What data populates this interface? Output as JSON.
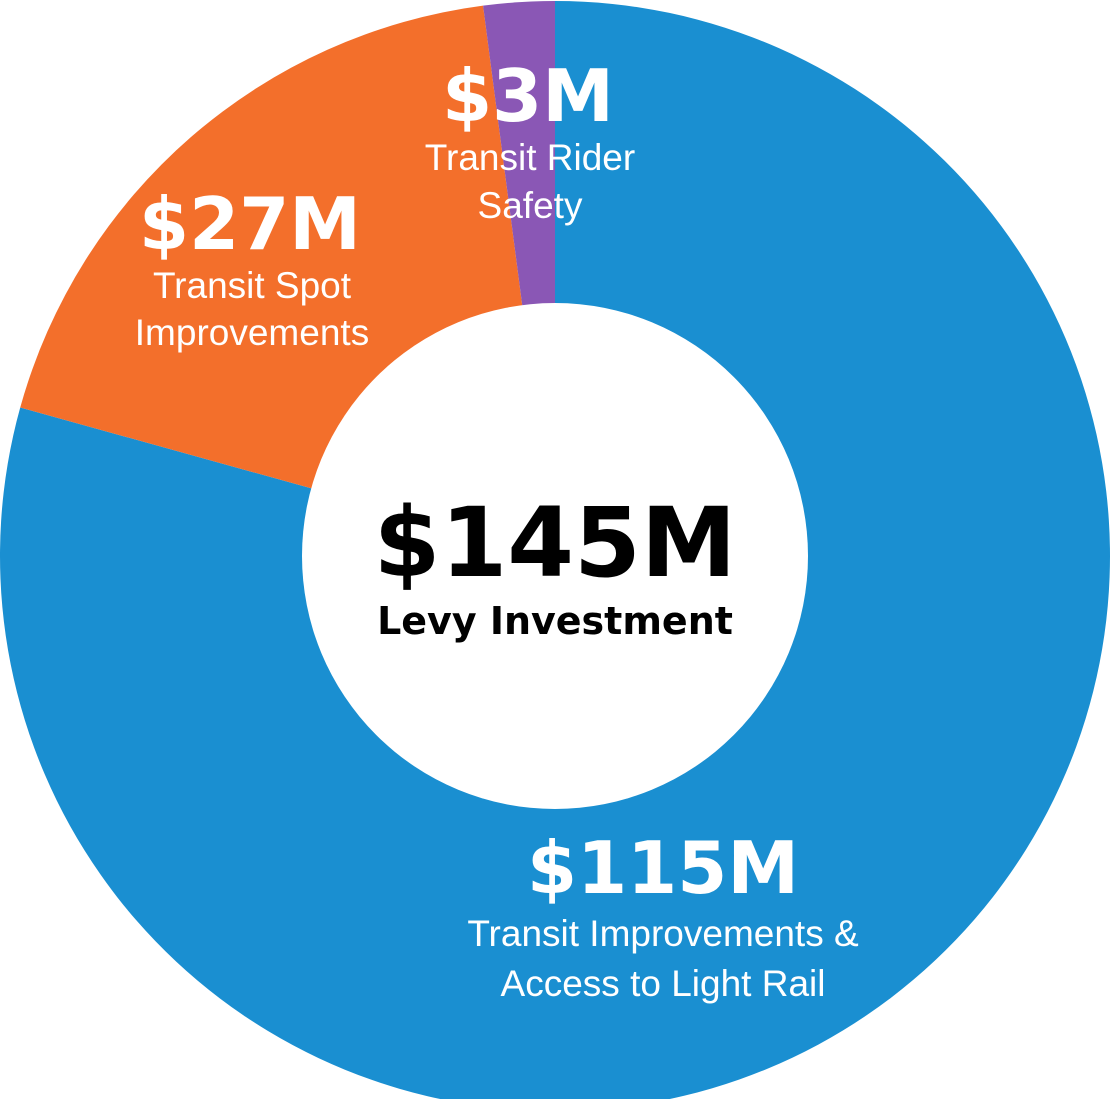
{
  "chart_data": {
    "type": "pie",
    "center": {
      "value": "$145M",
      "label": "Levy Investment"
    },
    "slices": [
      {
        "value": 115,
        "value_text": "$115M",
        "label_lines": [
          "Transit Improvements &",
          "Access to Light Rail"
        ],
        "color": "#1a8fd1"
      },
      {
        "value": 27,
        "value_text": "$27M",
        "label_lines": [
          "Transit Spot",
          "Improvements"
        ],
        "color": "#f36f2b"
      },
      {
        "value": 3,
        "value_text": "$3M",
        "label_lines": [
          "Transit Rider",
          "Safety"
        ],
        "color": "#8a57b5"
      }
    ]
  }
}
